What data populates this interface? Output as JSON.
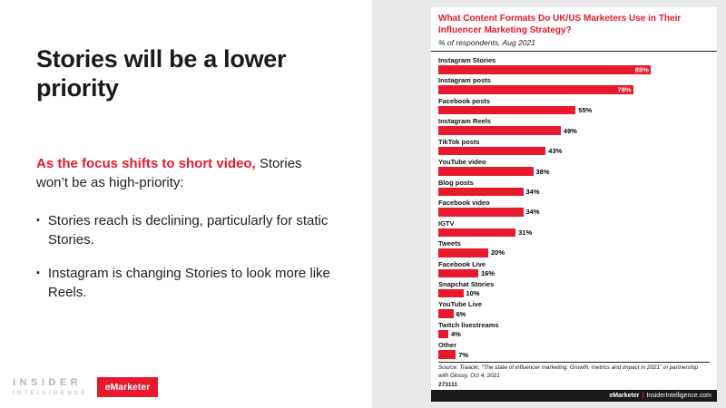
{
  "slide": {
    "title": "Stories will be a lower priority",
    "lead": {
      "bold_red": "As the focus shifts to short video,",
      "rest": " Stories won’t be as high-priority:"
    },
    "bullets": [
      "Stories reach is declining, particularly for static Stories.",
      "Instagram is changing Stories to look more like Reels."
    ],
    "bullet_marker": "▪",
    "brand": {
      "insider_line1": "INSIDER",
      "insider_line2": "INTELLIGENCE",
      "emarketer_badge": "eMarketer"
    }
  },
  "chart_data": {
    "type": "bar",
    "orientation": "horizontal",
    "title": "What Content Formats Do UK/US Marketers Use in Their Influencer Marketing Strategy?",
    "subtitle": "% of respondents, Aug 2021",
    "categories": [
      "Instagram Stories",
      "Instagram posts",
      "Facebook posts",
      "Instagram Reels",
      "TikTok posts",
      "YouTube video",
      "Blog posts",
      "Facebook video",
      "IGTV",
      "Tweets",
      "Facebook Live",
      "Snapchat Stories",
      "YouTube Live",
      "Twitch livestreams",
      "Other"
    ],
    "values": [
      85,
      78,
      55,
      49,
      43,
      38,
      34,
      34,
      31,
      20,
      16,
      10,
      6,
      4,
      7
    ],
    "unit": "%",
    "xlim": [
      0,
      100
    ],
    "bar_color": "#e8192c",
    "value_label_inside_threshold": 70,
    "grid": false,
    "legend": "none"
  },
  "chart_footer": {
    "source_line": "Source: Traackr, \"The state of influencer marketing: Growth, metrics and impact in 2021\" in partnership with Glossy, Oct 4, 2021",
    "chart_id": "273111",
    "brand_left": "eMarketer",
    "separator": "|",
    "brand_right": "InsiderIntelligence.com"
  },
  "colors": {
    "accent_red": "#e8192c",
    "panel_gray": "#e9e9e9",
    "text_dark": "#1b1b1b",
    "logo_gray": "#b5b5b5",
    "footer_black": "#1a1a1a"
  }
}
